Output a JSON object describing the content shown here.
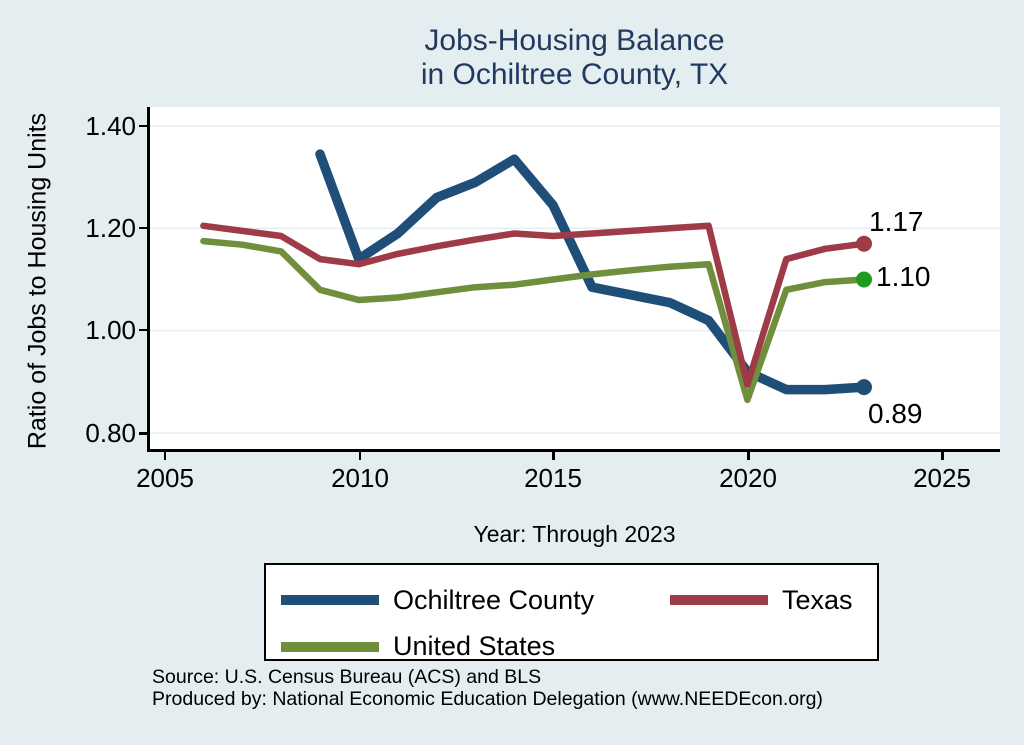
{
  "title": {
    "line1": "Jobs-Housing Balance",
    "line2": "in Ochiltree County, TX",
    "color": "#203a60"
  },
  "y_axis": {
    "label": "Ratio of Jobs to Housing Units",
    "tick_labels": [
      "1.40",
      "1.20",
      "1.00",
      "0.80"
    ]
  },
  "x_axis": {
    "label": "Year: Through 2023",
    "tick_labels": [
      "2005",
      "2010",
      "2015",
      "2020",
      "2025"
    ]
  },
  "end_labels": {
    "texas": "1.17",
    "united_states": "1.10",
    "ochiltree_county": "0.89"
  },
  "legend": {
    "items": [
      {
        "label": "Ochiltree County"
      },
      {
        "label": "Texas"
      },
      {
        "label": "United States"
      }
    ]
  },
  "footer": {
    "line1": "Source: U.S. Census Bureau (ACS) and BLS",
    "line2": "Produced by: National Economic Education Delegation (www.NEEDEcon.org)"
  },
  "colors": {
    "page_background": "#e4edf0",
    "plot_background": "#ffffff",
    "grid": "#e6eff2",
    "ochiltree_county": "#1f4e79",
    "texas": "#9e3b47",
    "united_states": "#6f8f3d",
    "us_end_marker": "#1e9b1e",
    "title_text": "#203a60"
  },
  "chart_data": {
    "type": "line",
    "title": "Jobs-Housing Balance in Ochiltree County, TX",
    "xlabel": "Year: Through 2023",
    "ylabel": "Ratio of Jobs to Housing Units",
    "xlim": [
      2004.6,
      2026.5
    ],
    "ylim": [
      0.769,
      1.437
    ],
    "xticks": [
      2005,
      2010,
      2015,
      2020,
      2025
    ],
    "yticks": [
      0.8,
      1.0,
      1.2,
      1.4
    ],
    "grid": "horizontal-only",
    "grid_color": "#e6eff2",
    "legend_position": "bottom",
    "series": [
      {
        "name": "Ochiltree County",
        "slug": "ochiltree-county",
        "color": "#1f4e79",
        "marker_color": "#1f4e79",
        "line_width": 9.5,
        "z": 0,
        "end_label": "0.89",
        "x": [
          2009,
          2010,
          2011,
          2012,
          2013,
          2014,
          2015,
          2016,
          2017,
          2018,
          2019,
          2020,
          2021,
          2022,
          2023
        ],
        "values": [
          1.345,
          1.14,
          1.19,
          1.26,
          1.29,
          1.335,
          1.245,
          1.085,
          1.07,
          1.055,
          1.02,
          0.92,
          0.885,
          0.885,
          0.89
        ]
      },
      {
        "name": "Texas",
        "slug": "texas",
        "color": "#9e3b47",
        "marker_color": "#9e3b47",
        "line_width": 6.5,
        "z": 2,
        "end_label": "1.17",
        "x": [
          2006,
          2007,
          2008,
          2009,
          2010,
          2011,
          2012,
          2013,
          2014,
          2015,
          2016,
          2017,
          2018,
          2019,
          2020,
          2021,
          2022,
          2023
        ],
        "values": [
          1.205,
          1.195,
          1.185,
          1.14,
          1.13,
          1.15,
          1.165,
          1.178,
          1.19,
          1.185,
          1.19,
          1.195,
          1.2,
          1.205,
          0.895,
          1.14,
          1.16,
          1.17
        ]
      },
      {
        "name": "United States",
        "slug": "united-states",
        "color": "#6f8f3d",
        "marker_color": "#1e9b1e",
        "line_width": 6.5,
        "z": 1,
        "end_label": "1.10",
        "x": [
          2006,
          2007,
          2008,
          2009,
          2010,
          2011,
          2012,
          2013,
          2014,
          2015,
          2016,
          2017,
          2018,
          2019,
          2020,
          2021,
          2022,
          2023
        ],
        "values": [
          1.175,
          1.168,
          1.155,
          1.08,
          1.06,
          1.065,
          1.075,
          1.085,
          1.09,
          1.1,
          1.11,
          1.118,
          1.125,
          1.13,
          0.865,
          1.08,
          1.095,
          1.1
        ]
      }
    ]
  }
}
